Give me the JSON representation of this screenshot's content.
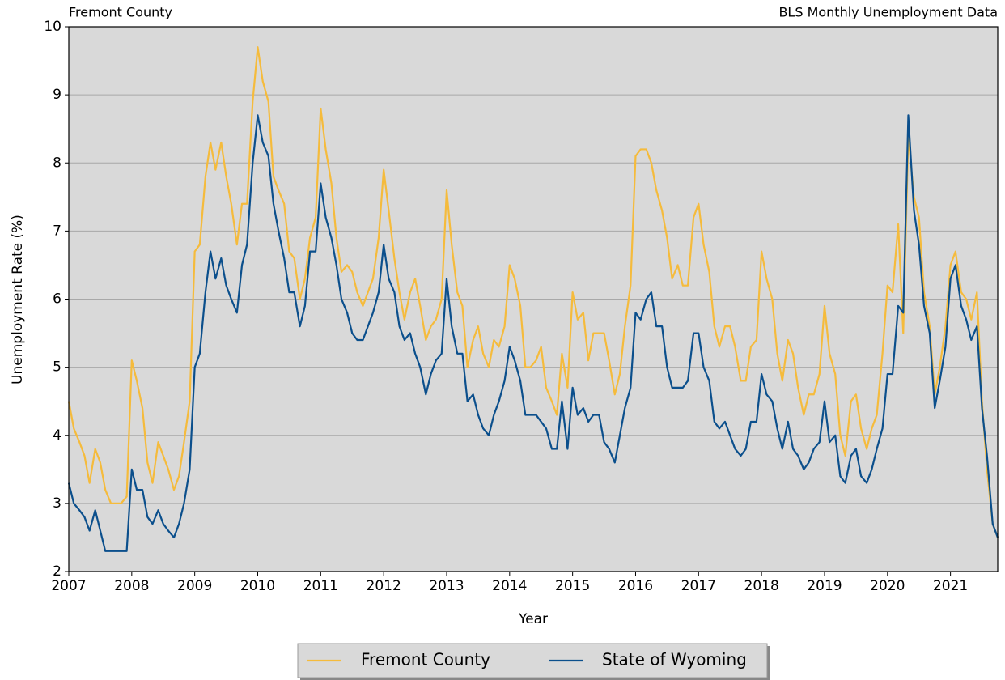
{
  "chart_data": {
    "type": "line",
    "title_left": "Fremont County",
    "title_right": "BLS Monthly Unemployment Data",
    "xlabel": "Year",
    "ylabel": "Unemployment Rate (%)",
    "xlim": [
      2007,
      2021.75
    ],
    "xticks": [
      2007,
      2008,
      2009,
      2010,
      2011,
      2012,
      2013,
      2014,
      2015,
      2016,
      2017,
      2018,
      2019,
      2020,
      2021
    ],
    "ylim": [
      2,
      10
    ],
    "yticks": [
      2,
      3,
      4,
      5,
      6,
      7,
      8,
      9,
      10
    ],
    "grid": "y",
    "legend": "below",
    "x": [
      2007,
      2007.08,
      2007.17,
      2007.25,
      2007.33,
      2007.42,
      2007.5,
      2007.58,
      2007.67,
      2007.75,
      2007.83,
      2007.92,
      2008,
      2008.08,
      2008.17,
      2008.25,
      2008.33,
      2008.42,
      2008.5,
      2008.58,
      2008.67,
      2008.75,
      2008.83,
      2008.92,
      2009,
      2009.08,
      2009.17,
      2009.25,
      2009.33,
      2009.42,
      2009.5,
      2009.58,
      2009.67,
      2009.75,
      2009.83,
      2009.92,
      2010,
      2010.08,
      2010.17,
      2010.25,
      2010.33,
      2010.42,
      2010.5,
      2010.58,
      2010.67,
      2010.75,
      2010.83,
      2010.92,
      2011,
      2011.08,
      2011.17,
      2011.25,
      2011.33,
      2011.42,
      2011.5,
      2011.58,
      2011.67,
      2011.75,
      2011.83,
      2011.92,
      2012,
      2012.08,
      2012.17,
      2012.25,
      2012.33,
      2012.42,
      2012.5,
      2012.58,
      2012.67,
      2012.75,
      2012.83,
      2012.92,
      2013,
      2013.08,
      2013.17,
      2013.25,
      2013.33,
      2013.42,
      2013.5,
      2013.58,
      2013.67,
      2013.75,
      2013.83,
      2013.92,
      2014,
      2014.08,
      2014.17,
      2014.25,
      2014.33,
      2014.42,
      2014.5,
      2014.58,
      2014.67,
      2014.75,
      2014.83,
      2014.92,
      2015,
      2015.08,
      2015.17,
      2015.25,
      2015.33,
      2015.42,
      2015.5,
      2015.58,
      2015.67,
      2015.75,
      2015.83,
      2015.92,
      2016,
      2016.08,
      2016.17,
      2016.25,
      2016.33,
      2016.42,
      2016.5,
      2016.58,
      2016.67,
      2016.75,
      2016.83,
      2016.92,
      2017,
      2017.08,
      2017.17,
      2017.25,
      2017.33,
      2017.42,
      2017.5,
      2017.58,
      2017.67,
      2017.75,
      2017.83,
      2017.92,
      2018,
      2018.08,
      2018.17,
      2018.25,
      2018.33,
      2018.42,
      2018.5,
      2018.58,
      2018.67,
      2018.75,
      2018.83,
      2018.92,
      2019,
      2019.08,
      2019.17,
      2019.25,
      2019.33,
      2019.42,
      2019.5,
      2019.58,
      2019.67,
      2019.75,
      2019.83,
      2019.92,
      2020,
      2020.08,
      2020.17,
      2020.25,
      2020.33,
      2020.42,
      2020.5,
      2020.58,
      2020.67,
      2020.75,
      2020.83,
      2020.92,
      2021,
      2021.08,
      2021.17,
      2021.25,
      2021.33,
      2021.42,
      2021.5,
      2021.58,
      2021.67,
      2021.75
    ],
    "series": [
      {
        "name": "Fremont County",
        "color": "#f5bb3c",
        "values": [
          4.5,
          4.1,
          3.9,
          3.7,
          3.3,
          3.8,
          3.6,
          3.2,
          3.0,
          3.0,
          3.0,
          3.1,
          5.1,
          4.8,
          4.4,
          3.6,
          3.3,
          3.9,
          3.7,
          3.5,
          3.2,
          3.4,
          3.9,
          4.5,
          6.7,
          6.8,
          7.8,
          8.3,
          7.9,
          8.3,
          7.8,
          7.4,
          6.8,
          7.4,
          7.4,
          8.9,
          9.7,
          9.2,
          8.9,
          7.8,
          7.6,
          7.4,
          6.7,
          6.6,
          6.0,
          6.3,
          6.9,
          7.2,
          8.8,
          8.2,
          7.7,
          6.9,
          6.4,
          6.5,
          6.4,
          6.1,
          5.9,
          6.1,
          6.3,
          6.9,
          7.9,
          7.3,
          6.6,
          6.1,
          5.7,
          6.1,
          6.3,
          5.9,
          5.4,
          5.6,
          5.7,
          6.0,
          7.6,
          6.8,
          6.1,
          5.9,
          5.0,
          5.4,
          5.6,
          5.2,
          5.0,
          5.4,
          5.3,
          5.6,
          6.5,
          6.3,
          5.9,
          5.0,
          5.0,
          5.1,
          5.3,
          4.7,
          4.5,
          4.3,
          5.2,
          4.7,
          6.1,
          5.7,
          5.8,
          5.1,
          5.5,
          5.5,
          5.5,
          5.1,
          4.6,
          4.9,
          5.6,
          6.2,
          8.1,
          8.2,
          8.2,
          8.0,
          7.6,
          7.3,
          6.9,
          6.3,
          6.5,
          6.2,
          6.2,
          7.2,
          7.4,
          6.8,
          6.4,
          5.6,
          5.3,
          5.6,
          5.6,
          5.3,
          4.8,
          4.8,
          5.3,
          5.4,
          6.7,
          6.3,
          6.0,
          5.2,
          4.8,
          5.4,
          5.2,
          4.7,
          4.3,
          4.6,
          4.6,
          4.9,
          5.9,
          5.2,
          4.9,
          4.0,
          3.7,
          4.5,
          4.6,
          4.1,
          3.8,
          4.1,
          4.3,
          5.2,
          6.2,
          6.1,
          7.1,
          5.5,
          8.4,
          7.5,
          7.2,
          6.1,
          5.6,
          4.6,
          5.0,
          5.6,
          6.5,
          6.7,
          6.1,
          6.0,
          5.7,
          6.1,
          4.5,
          3.5,
          2.7,
          2.5
        ]
      },
      {
        "name": "State of Wyoming",
        "color": "#0b4f8c",
        "values": [
          3.3,
          3.0,
          2.9,
          2.8,
          2.6,
          2.9,
          2.6,
          2.3,
          2.3,
          2.3,
          2.3,
          2.3,
          3.5,
          3.2,
          3.2,
          2.8,
          2.7,
          2.9,
          2.7,
          2.6,
          2.5,
          2.7,
          3.0,
          3.5,
          5.0,
          5.2,
          6.1,
          6.7,
          6.3,
          6.6,
          6.2,
          6.0,
          5.8,
          6.5,
          6.8,
          8.0,
          8.7,
          8.3,
          8.1,
          7.4,
          7.0,
          6.6,
          6.1,
          6.1,
          5.6,
          5.9,
          6.7,
          6.7,
          7.7,
          7.2,
          6.9,
          6.5,
          6.0,
          5.8,
          5.5,
          5.4,
          5.4,
          5.6,
          5.8,
          6.1,
          6.8,
          6.3,
          6.1,
          5.6,
          5.4,
          5.5,
          5.2,
          5.0,
          4.6,
          4.9,
          5.1,
          5.2,
          6.3,
          5.6,
          5.2,
          5.2,
          4.5,
          4.6,
          4.3,
          4.1,
          4.0,
          4.3,
          4.5,
          4.8,
          5.3,
          5.1,
          4.8,
          4.3,
          4.3,
          4.3,
          4.2,
          4.1,
          3.8,
          3.8,
          4.5,
          3.8,
          4.7,
          4.3,
          4.4,
          4.2,
          4.3,
          4.3,
          3.9,
          3.8,
          3.6,
          4.0,
          4.4,
          4.7,
          5.8,
          5.7,
          6.0,
          6.1,
          5.6,
          5.6,
          5.0,
          4.7,
          4.7,
          4.7,
          4.8,
          5.5,
          5.5,
          5.0,
          4.8,
          4.2,
          4.1,
          4.2,
          4.0,
          3.8,
          3.7,
          3.8,
          4.2,
          4.2,
          4.9,
          4.6,
          4.5,
          4.1,
          3.8,
          4.2,
          3.8,
          3.7,
          3.5,
          3.6,
          3.8,
          3.9,
          4.5,
          3.9,
          4.0,
          3.4,
          3.3,
          3.7,
          3.8,
          3.4,
          3.3,
          3.5,
          3.8,
          4.1,
          4.9,
          4.9,
          5.9,
          5.8,
          8.7,
          7.3,
          6.8,
          5.9,
          5.5,
          4.4,
          4.8,
          5.3,
          6.3,
          6.5,
          5.9,
          5.7,
          5.4,
          5.6,
          4.4,
          3.7,
          2.7,
          2.5
        ]
      }
    ]
  }
}
